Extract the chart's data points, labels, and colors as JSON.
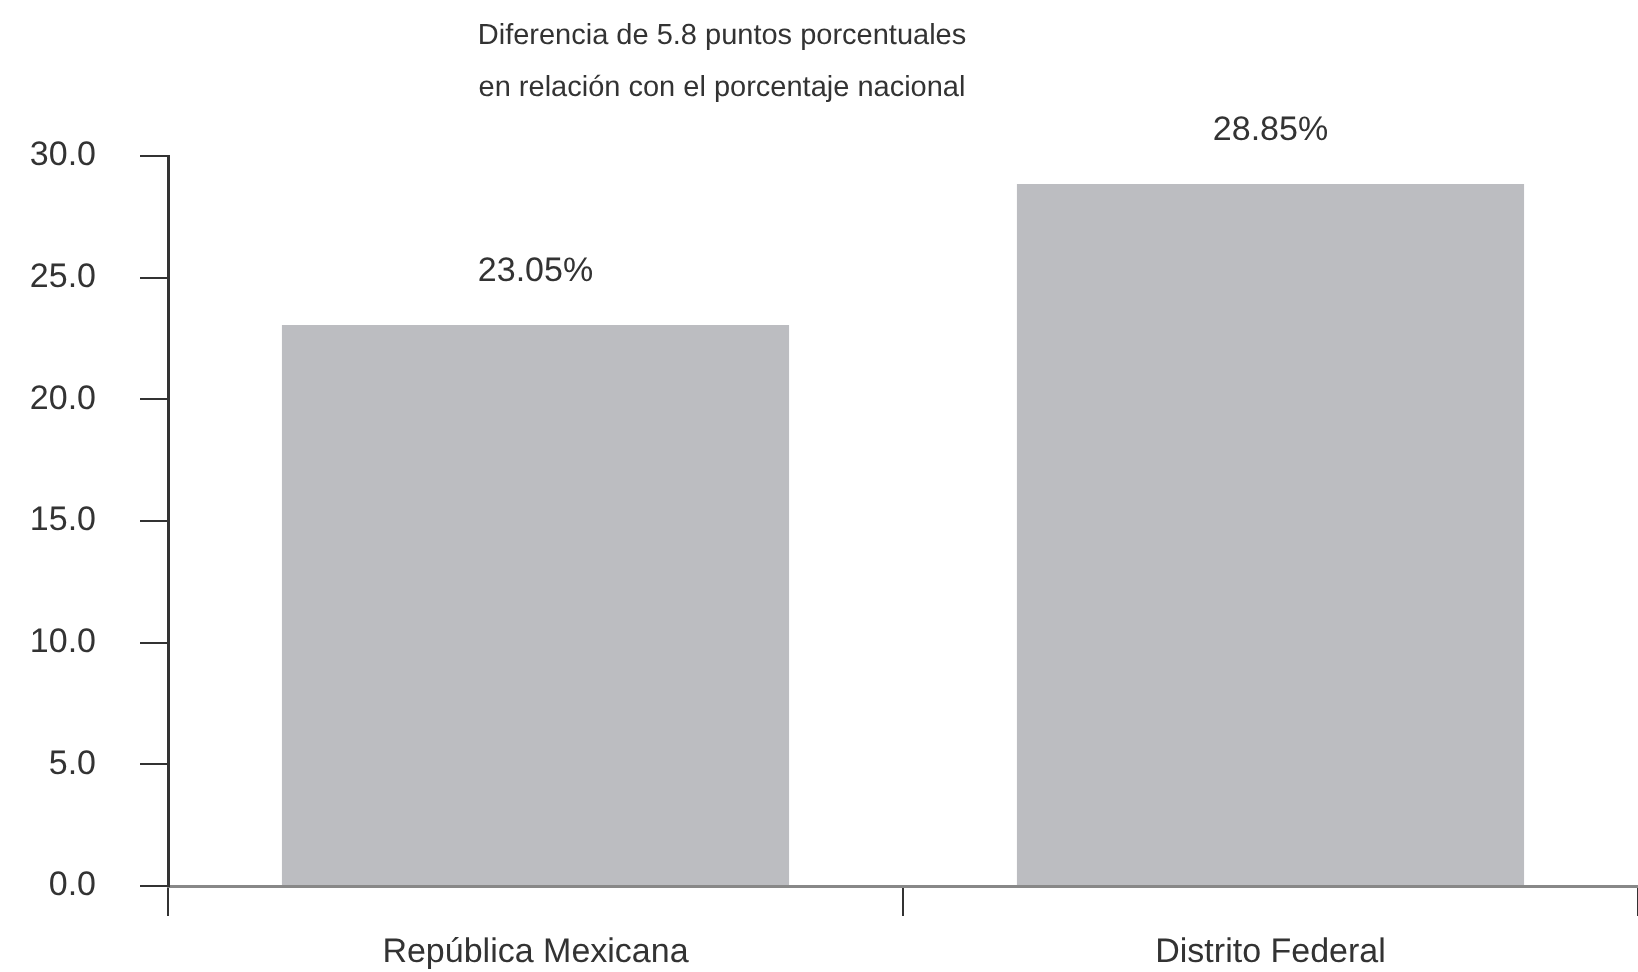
{
  "chart_data": {
    "type": "bar",
    "title": "Diferencia de 5.8 puntos porcentuales\nen relación con el porcentaje nacional",
    "categories": [
      "República Mexicana",
      "Distrito Federal"
    ],
    "values": [
      23.05,
      28.85
    ],
    "color": "#bcbdc1",
    "value_labels": [
      "23.05%",
      "28.85%"
    ],
    "ylim": [
      0,
      30
    ],
    "yticks": [
      {
        "value": 0,
        "label": "0.0"
      },
      {
        "value": 5,
        "label": "5.0"
      },
      {
        "value": 10,
        "label": "10.0"
      },
      {
        "value": 15,
        "label": "15.0"
      },
      {
        "value": 20,
        "label": "20.0"
      },
      {
        "value": 25,
        "label": "25.0"
      },
      {
        "value": 30,
        "label": "30.0"
      }
    ],
    "grid": false,
    "legend": false
  }
}
